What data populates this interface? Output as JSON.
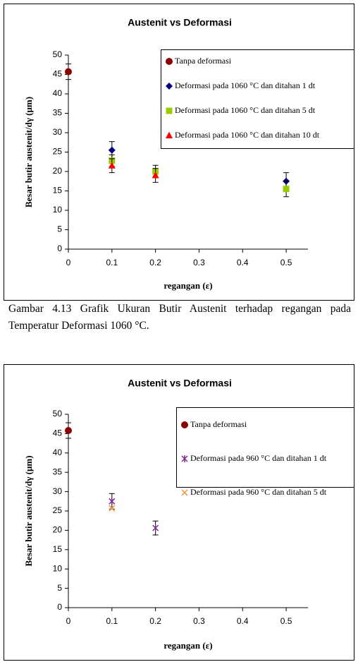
{
  "chart_data": [
    {
      "type": "scatter",
      "title": "Austenit vs Deformasi",
      "x_label": "regangan (ε)",
      "y_label": "Besar butir austenit/dγ (μm)",
      "xlim": [
        0,
        0.55
      ],
      "xticks": [
        0,
        0.1,
        0.2,
        0.3,
        0.4,
        0.5
      ],
      "ylim": [
        0,
        50
      ],
      "yticks": [
        0,
        5,
        10,
        15,
        20,
        25,
        30,
        35,
        40,
        45,
        50
      ],
      "series": [
        {
          "name": "Tanpa deformasi",
          "color": "#8b0000",
          "marker": "circle",
          "x": [
            0
          ],
          "values": [
            45.7
          ],
          "errors": [
            2
          ]
        },
        {
          "name": "Deformasi pada 1060 °C dan ditahan 1 dt",
          "color": "#000080",
          "marker": "diamond",
          "x": [
            0.1,
            0.5
          ],
          "values": [
            25.5,
            17.5
          ],
          "errors": [
            2.2,
            2.2
          ]
        },
        {
          "name": "Deformasi pada 1060 °C dan ditahan 5 dt",
          "color": "#99cc00",
          "marker": "square",
          "x": [
            0.1,
            0.2,
            0.5
          ],
          "values": [
            22.8,
            20,
            15.5
          ],
          "errors": [
            1.5,
            1.6,
            2
          ]
        },
        {
          "name": "Deformasi pada 1060 °C dan ditahan 10 dt",
          "color": "#ff0000",
          "marker": "triangle",
          "x": [
            0.1,
            0.2
          ],
          "values": [
            21.5,
            19
          ],
          "errors": [
            1.8,
            1.8
          ]
        }
      ]
    },
    {
      "type": "scatter",
      "title": "Austenit vs Deformasi",
      "x_label": "regangan (ε)",
      "y_label": "Besar butir austenit/dγ (μm)",
      "xlim": [
        0,
        0.55
      ],
      "xticks": [
        0,
        0.1,
        0.2,
        0.3,
        0.4,
        0.5
      ],
      "ylim": [
        0,
        50
      ],
      "yticks": [
        0,
        5,
        10,
        15,
        20,
        25,
        30,
        35,
        40,
        45,
        50
      ],
      "series": [
        {
          "name": "Tanpa deformasi",
          "color": "#8b0000",
          "marker": "circle",
          "x": [
            0
          ],
          "values": [
            45.8
          ],
          "errors": [
            2
          ]
        },
        {
          "name": "Deformasi pada 960 °C dan ditahan 1 dt",
          "color": "#7b2c8c",
          "marker": "star",
          "x": [
            0.1,
            0.2
          ],
          "values": [
            27.5,
            20.6
          ],
          "errors": [
            2,
            1.8
          ]
        },
        {
          "name": "Deformasi pada 960 °C dan ditahan 5 dt",
          "color": "#f0903c",
          "marker": "x",
          "x": [
            0.1
          ],
          "values": [
            25.7
          ],
          "errors": [
            null
          ]
        }
      ]
    }
  ],
  "caption": "Gambar 4.13 Grafik Ukuran Butir Austenit terhadap regangan pada Temperatur Deformasi 1060 °C."
}
